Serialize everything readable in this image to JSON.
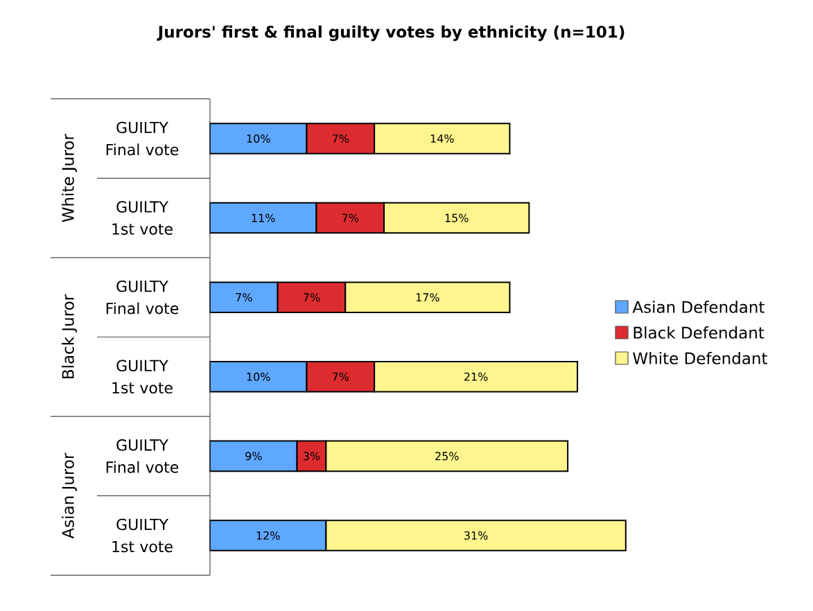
{
  "chart_data": {
    "type": "bar",
    "orientation": "horizontal",
    "stacked": true,
    "title": "Jurors' first & final guilty votes by ethnicity  (n=101)",
    "categories": [
      "GUILTY Final vote",
      "GUILTY 1st vote",
      "GUILTY Final vote",
      "GUILTY 1st vote",
      "GUILTY Final vote",
      "GUILTY 1st vote"
    ],
    "annotations": [
      "White Juror",
      "Black Juror",
      "Asian Juror"
    ],
    "series": [
      {
        "name": "Asian Defendant",
        "color": "#5fa8ff",
        "values": [
          10,
          11,
          7,
          10,
          9,
          12
        ],
        "value_labels": [
          "10%",
          "11%",
          "7%",
          "10%",
          "9%",
          "12%"
        ]
      },
      {
        "name": "Black Defendant",
        "color": "#dd2c2f",
        "values": [
          7,
          7,
          7,
          7,
          3,
          null
        ],
        "value_labels": [
          "7%",
          "7%",
          "7%",
          "7%",
          "3%",
          null
        ]
      },
      {
        "name": "White Defendant",
        "color": "#fff58f",
        "values": [
          14,
          15,
          17,
          21,
          25,
          31
        ],
        "value_labels": [
          "14%",
          "15%",
          "17%",
          "21%",
          "25%",
          "31%"
        ]
      }
    ],
    "legend": "right"
  }
}
